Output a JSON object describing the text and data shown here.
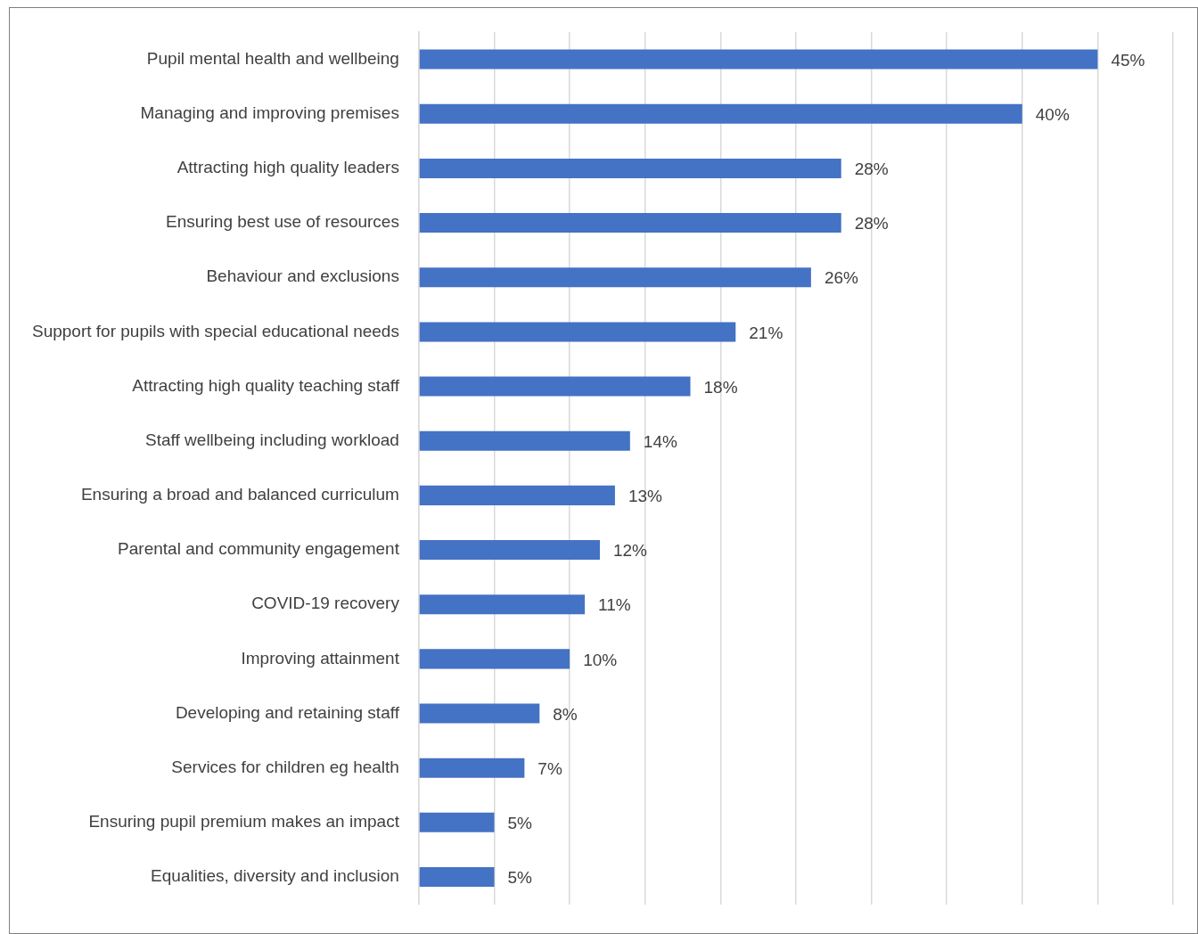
{
  "chart_data": {
    "type": "bar",
    "orientation": "horizontal",
    "categories": [
      "Pupil mental health and wellbeing",
      "Managing and improving premises",
      "Attracting high quality leaders",
      "Ensuring best use of resources",
      "Behaviour and exclusions",
      "Support for pupils with special educational needs",
      "Attracting high quality teaching staff",
      "Staff wellbeing including workload",
      "Ensuring a broad and balanced curriculum",
      "Parental and community engagement",
      "COVID-19 recovery",
      "Improving attainment",
      "Developing and retaining staff",
      "Services for children eg health",
      "Ensuring pupil premium makes an impact",
      "Equalities, diversity and inclusion"
    ],
    "values": [
      45,
      40,
      28,
      28,
      26,
      21,
      18,
      14,
      13,
      12,
      11,
      10,
      8,
      7,
      5,
      5
    ],
    "value_labels": [
      "45%",
      "40%",
      "28%",
      "28%",
      "26%",
      "21%",
      "18%",
      "14%",
      "13%",
      "12%",
      "11%",
      "10%",
      "8%",
      "7%",
      "5%",
      "5%"
    ],
    "color": "#4472c4",
    "xlim": [
      0,
      50
    ],
    "xticks": [
      {
        "value": 0,
        "label": null
      },
      {
        "value": 5,
        "label": null
      },
      {
        "value": 10,
        "label": null
      },
      {
        "value": 15,
        "label": null
      },
      {
        "value": 20,
        "label": null
      },
      {
        "value": 25,
        "label": null
      },
      {
        "value": 30,
        "label": null
      },
      {
        "value": 35,
        "label": null
      },
      {
        "value": 40,
        "label": null
      },
      {
        "value": 45,
        "label": null
      },
      {
        "value": 50,
        "label": null
      }
    ],
    "grid": "x",
    "tick_labels": "y",
    "legend": false
  }
}
